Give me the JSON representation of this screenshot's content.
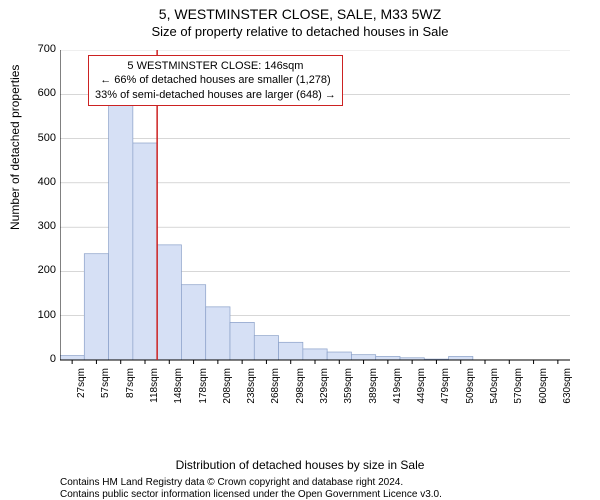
{
  "title_line1": "5, WESTMINSTER CLOSE, SALE, M33 5WZ",
  "title_line2": "Size of property relative to detached houses in Sale",
  "ylabel": "Number of detached properties",
  "xlabel": "Distribution of detached houses by size in Sale",
  "footer1": "Contains HM Land Registry data © Crown copyright and database right 2024.",
  "footer2": "Contains public sector information licensed under the Open Government Licence v3.0.",
  "callout": {
    "line1": "5 WESTMINSTER CLOSE: 146sqm",
    "line2": "← 66% of detached houses are smaller (1,278)",
    "line3": "33% of semi-detached houses are larger (648) →"
  },
  "chart": {
    "type": "bar",
    "ylim": [
      0,
      700
    ],
    "ytick_step": 100,
    "yticks": [
      0,
      100,
      200,
      300,
      400,
      500,
      600,
      700
    ],
    "categories": [
      "27sqm",
      "57sqm",
      "87sqm",
      "118sqm",
      "148sqm",
      "178sqm",
      "208sqm",
      "238sqm",
      "268sqm",
      "298sqm",
      "329sqm",
      "359sqm",
      "389sqm",
      "419sqm",
      "449sqm",
      "479sqm",
      "509sqm",
      "540sqm",
      "570sqm",
      "600sqm",
      "630sqm"
    ],
    "values": [
      10,
      240,
      580,
      490,
      260,
      170,
      120,
      85,
      55,
      40,
      25,
      18,
      12,
      8,
      5,
      2,
      8,
      0,
      0,
      0,
      0
    ],
    "bar_fill": "#d6e0f5",
    "bar_stroke": "#8aa0c8",
    "grid_color": "#bfbfbf",
    "axis_color": "#000000",
    "highlight_line_color": "#cc2222",
    "highlight_line_x_index": 4,
    "background": "#ffffff",
    "label_fontsize": 12,
    "tick_fontsize": 11,
    "xtick_fontsize": 10,
    "bar_width_ratio": 1.0
  }
}
